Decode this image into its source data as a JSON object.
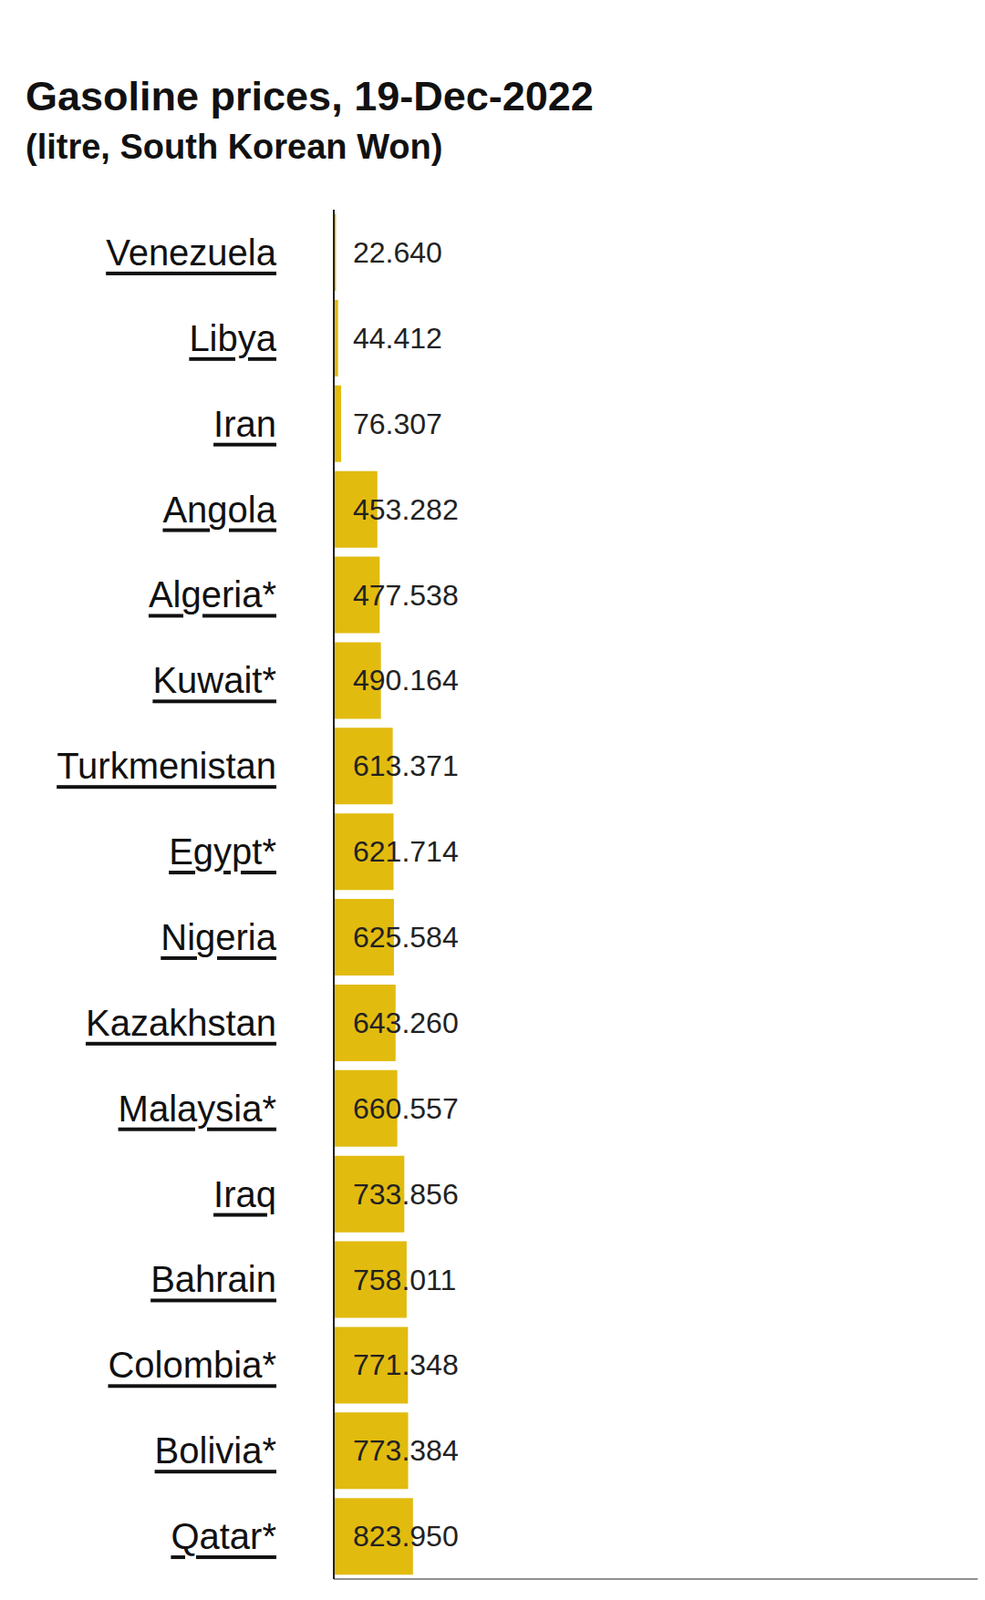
{
  "chart_data": {
    "type": "bar",
    "title": "Gasoline prices, 19-Dec-2022",
    "subtitle": "(litre, South Korean Won)",
    "orientation": "horizontal",
    "categories": [
      "Venezuela",
      "Libya",
      "Iran",
      "Angola",
      "Algeria*",
      "Kuwait*",
      "Turkmenistan",
      "Egypt*",
      "Nigeria",
      "Kazakhstan",
      "Malaysia*",
      "Iraq",
      "Bahrain",
      "Colombia*",
      "Bolivia*",
      "Qatar*"
    ],
    "values": [
      22.64,
      44.412,
      76.307,
      453.282,
      477.538,
      490.164,
      613.371,
      621.714,
      625.584,
      643.26,
      660.557,
      733.856,
      758.011,
      771.348,
      773.384,
      823.95
    ],
    "value_labels": [
      "22.640",
      "44.412",
      "76.307",
      "453.282",
      "477.538",
      "490.164",
      "613.371",
      "621.714",
      "625.584",
      "643.260",
      "660.557",
      "733.856",
      "758.011",
      "771.348",
      "773.384",
      "823.950"
    ],
    "color": "#e2bb0f",
    "data_labels": true,
    "tick_labels": "y",
    "xlim": [
      0,
      6700
    ],
    "xticks": []
  }
}
